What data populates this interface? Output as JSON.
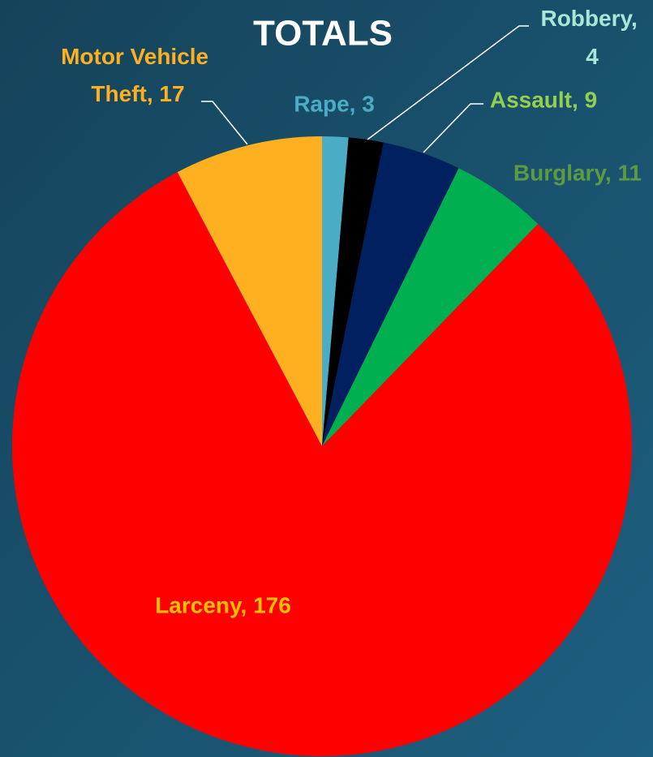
{
  "chart_data": {
    "type": "pie",
    "title": "TOTALS",
    "categories": [
      "Rape",
      "Robbery",
      "Assault",
      "Burglary",
      "Larceny",
      "Motor Vehicle Theft"
    ],
    "values": [
      3,
      4,
      9,
      11,
      176,
      17
    ],
    "value_labels": [
      "Rape, 3",
      "Robbery, 4",
      "Assault, 9",
      "Burglary, 11",
      "Larceny, 176",
      "Motor Vehicle Theft, 17"
    ],
    "colors": [
      "#4bacc6",
      "#000000",
      "#002060",
      "#00b050",
      "#ff0000",
      "#ffb020"
    ],
    "label_colors": [
      "#4bacc6",
      "#a8e6d8",
      "#92d050",
      "#5b9b42",
      "#ffc000",
      "#ffb020"
    ]
  }
}
